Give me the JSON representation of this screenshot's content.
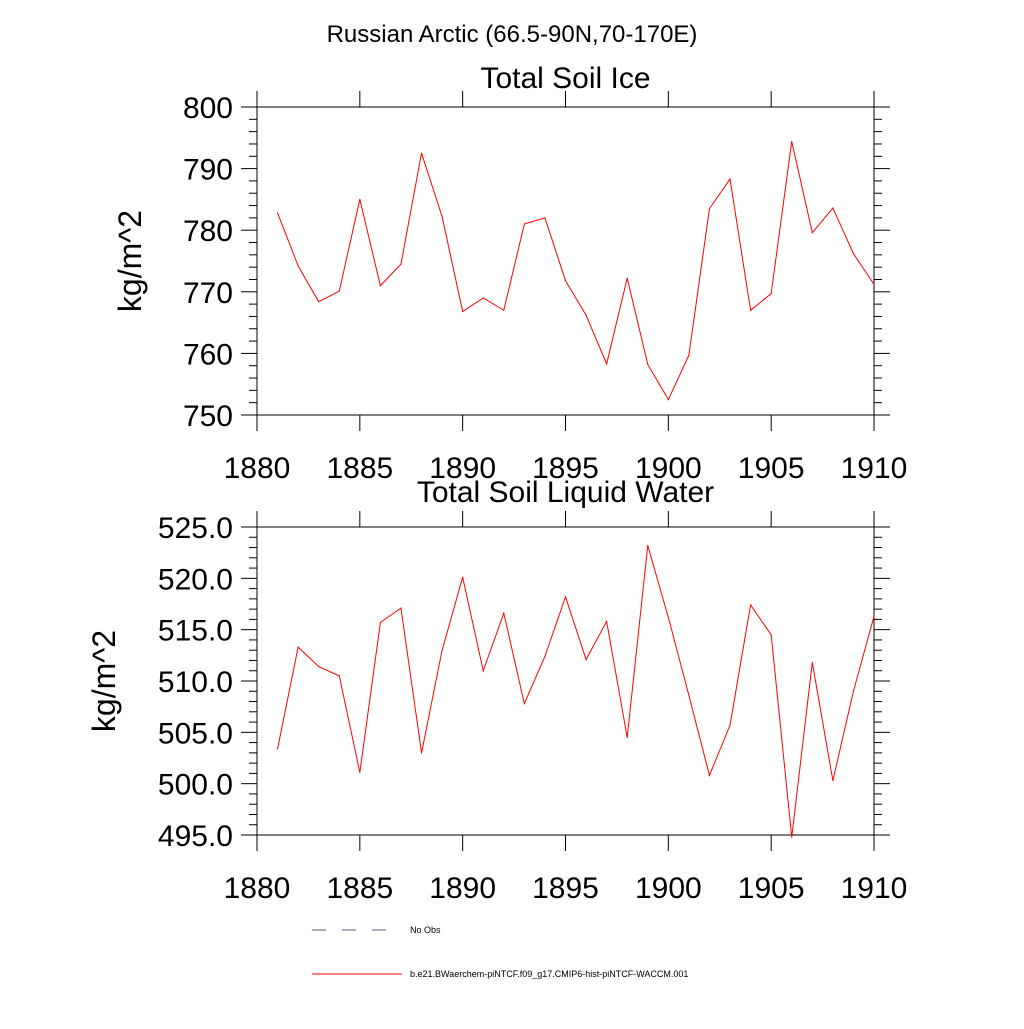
{
  "figure": {
    "suptitle": "Russian Arctic (66.5-90N,70-170E)"
  },
  "colors": {
    "model_series": "#ff0000",
    "obs_series": "#5a5a8c",
    "axes": "#000000",
    "background": "#ffffff"
  },
  "legend": {
    "obs_label": "No Obs",
    "model_label": "b.e21.BWaerchem-piNTCF.f09_g17.CMIP6-hist-piNTCF-WACCM.001"
  },
  "chart_data": [
    {
      "type": "line",
      "title": "Total Soil Ice",
      "xlabel": "",
      "ylabel": "kg/m^2",
      "xlim": [
        1880,
        1910
      ],
      "ylim": [
        750,
        800
      ],
      "x_ticks": [
        "1880",
        "1885",
        "1890",
        "1895",
        "1900",
        "1905",
        "1910"
      ],
      "y_ticks": [
        "750",
        "760",
        "770",
        "780",
        "790",
        "800"
      ],
      "grid": false,
      "series": [
        {
          "name": "b.e21.BWaerchem-piNTCF.f09_g17.CMIP6-hist-piNTCF-WACCM.001",
          "x": [
            1881,
            1882,
            1883,
            1884,
            1885,
            1886,
            1887,
            1888,
            1889,
            1890,
            1891,
            1892,
            1893,
            1894,
            1895,
            1896,
            1897,
            1898,
            1899,
            1900,
            1901,
            1902,
            1903,
            1904,
            1905,
            1906,
            1907,
            1908,
            1909,
            1910
          ],
          "values": [
            782.8,
            774.2,
            768.4,
            770.1,
            785.0,
            771.0,
            774.5,
            792.5,
            782.2,
            766.8,
            769.0,
            767.0,
            781.0,
            782.0,
            771.8,
            766.2,
            758.3,
            772.2,
            758.2,
            752.5,
            759.7,
            783.5,
            788.3,
            767.0,
            769.7,
            794.4,
            779.6,
            783.6,
            776.2,
            771.2
          ]
        }
      ]
    },
    {
      "type": "line",
      "title": "Total Soil Liquid Water",
      "xlabel": "",
      "ylabel": "kg/m^2",
      "xlim": [
        1880,
        1910
      ],
      "ylim": [
        495,
        525
      ],
      "x_ticks": [
        "1880",
        "1885",
        "1890",
        "1895",
        "1900",
        "1905",
        "1910"
      ],
      "y_ticks": [
        "495.0",
        "500.0",
        "505.0",
        "510.0",
        "515.0",
        "520.0",
        "525.0"
      ],
      "grid": false,
      "series": [
        {
          "name": "b.e21.BWaerchem-piNTCF.f09_g17.CMIP6-hist-piNTCF-WACCM.001",
          "x": [
            1881,
            1882,
            1883,
            1884,
            1885,
            1886,
            1887,
            1888,
            1889,
            1890,
            1891,
            1892,
            1893,
            1894,
            1895,
            1896,
            1897,
            1898,
            1899,
            1900,
            1901,
            1902,
            1903,
            1904,
            1905,
            1906,
            1907,
            1908,
            1909,
            1910
          ],
          "values": [
            503.4,
            513.3,
            511.4,
            510.5,
            501.1,
            515.7,
            517.1,
            503.0,
            513.0,
            520.1,
            511.0,
            516.6,
            507.8,
            512.4,
            518.2,
            512.1,
            515.8,
            504.5,
            523.2,
            516.2,
            508.6,
            500.8,
            505.7,
            517.4,
            514.5,
            494.8,
            511.8,
            500.3,
            509.0,
            516.3
          ]
        }
      ]
    }
  ]
}
